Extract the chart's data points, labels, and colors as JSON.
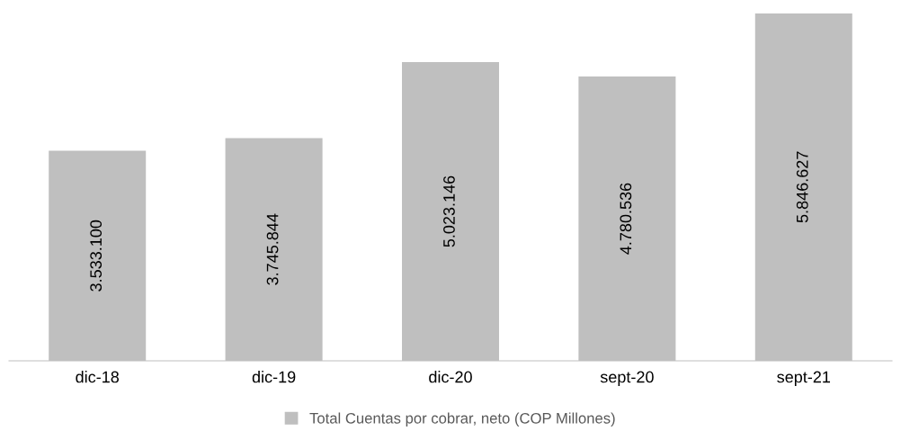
{
  "chart_data": {
    "type": "bar",
    "categories": [
      "dic-18",
      "dic-19",
      "dic-20",
      "sept-20",
      "sept-21"
    ],
    "series": [
      {
        "name": "Total Cuentas por cobrar, neto (COP Millones)",
        "color": "#bfbfbf",
        "values": [
          3533100,
          3745844,
          5023146,
          4780536,
          5846627
        ],
        "value_labels": [
          "3.533.100",
          "3.745.844",
          "5.023.146",
          "4.780.536",
          "5.846.627"
        ]
      }
    ],
    "legend": "bottom",
    "grid": false
  }
}
